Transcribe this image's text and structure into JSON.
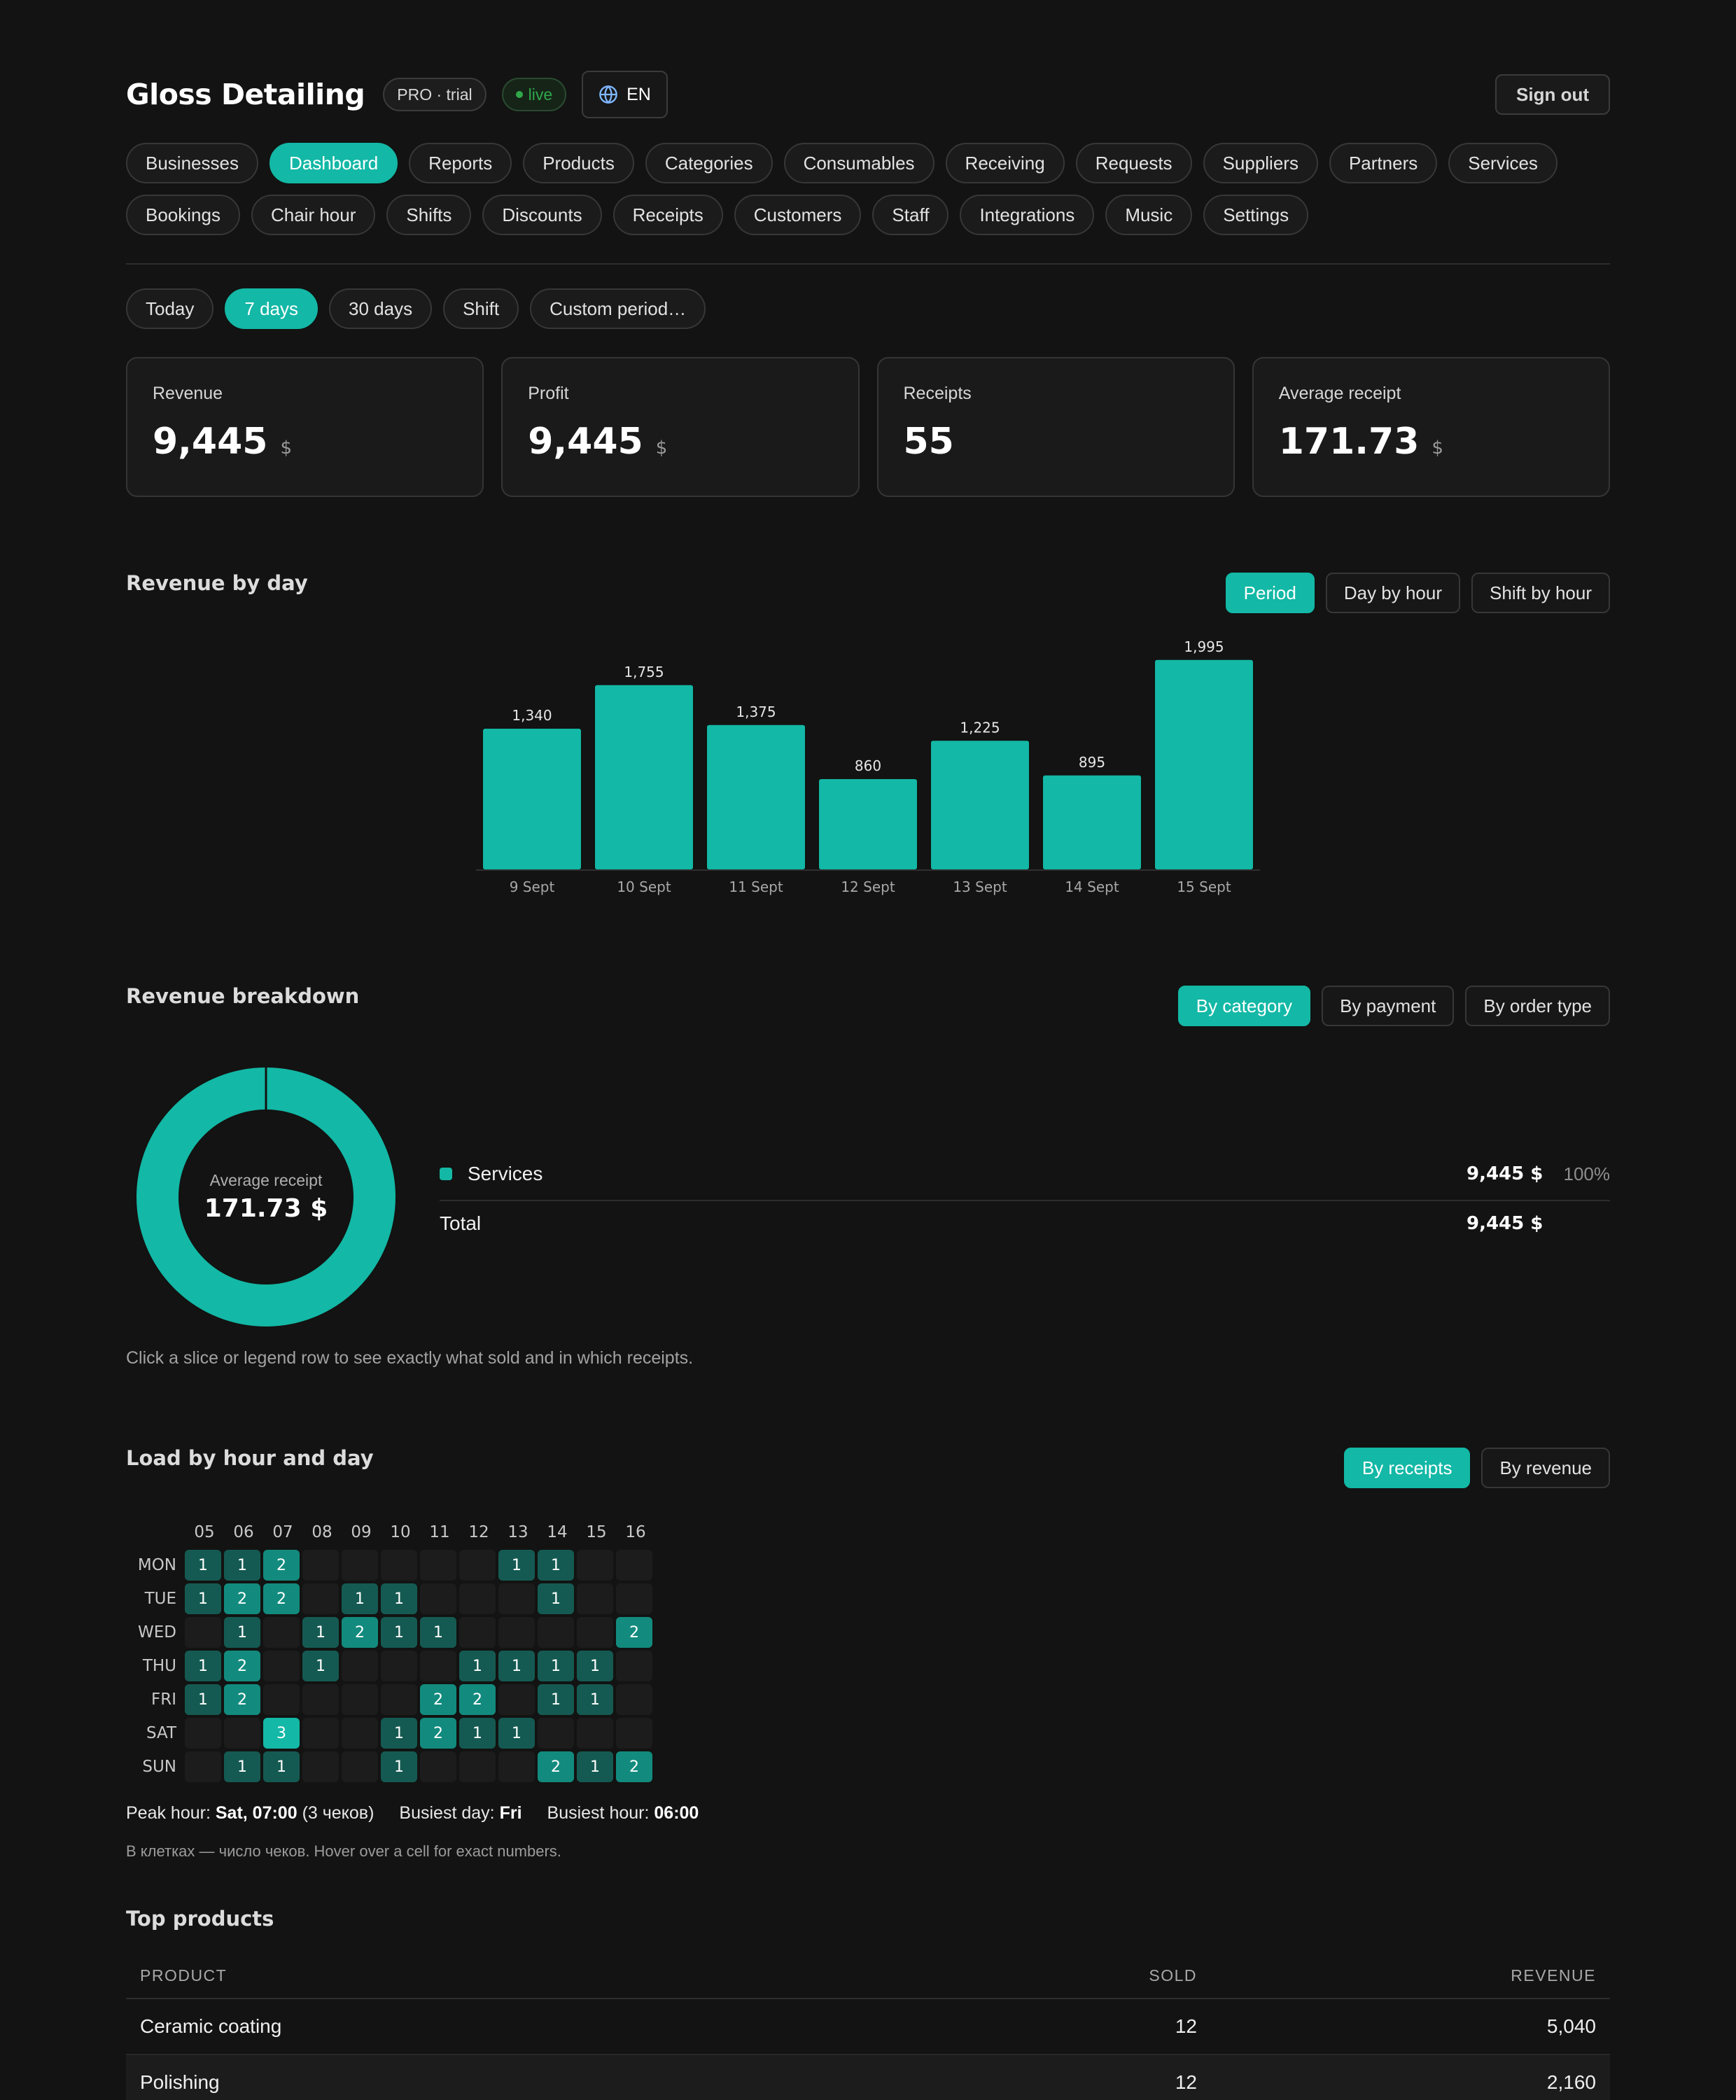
{
  "header": {
    "brand": "Gloss Detailing",
    "plan_badge": "PRO · trial",
    "live_badge": "live",
    "language": "EN",
    "sign_out": "Sign out"
  },
  "nav": {
    "row1": [
      "Businesses",
      "Dashboard",
      "Reports",
      "Products",
      "Categories",
      "Consumables",
      "Receiving",
      "Requests",
      "Suppliers",
      "Partners",
      "Services"
    ],
    "row2": [
      "Bookings",
      "Chair hour",
      "Shifts",
      "Discounts",
      "Receipts",
      "Customers",
      "Staff",
      "Integrations",
      "Music",
      "Settings"
    ],
    "active": "Dashboard"
  },
  "period": {
    "options": [
      "Today",
      "7 days",
      "30 days",
      "Shift",
      "Custom period…"
    ],
    "active": "7 days"
  },
  "kpis": [
    {
      "label": "Revenue",
      "value": "9,445",
      "unit": "$"
    },
    {
      "label": "Profit",
      "value": "9,445",
      "unit": "$"
    },
    {
      "label": "Receipts",
      "value": "55",
      "unit": ""
    },
    {
      "label": "Average receipt",
      "value": "171.73",
      "unit": "$"
    }
  ],
  "revenue_by_day": {
    "title": "Revenue by day",
    "modes": [
      "Period",
      "Day by hour",
      "Shift by hour"
    ],
    "active_mode": "Period"
  },
  "breakdown": {
    "title": "Revenue breakdown",
    "modes": [
      "By category",
      "By payment",
      "By order type"
    ],
    "active_mode": "By category",
    "center_label": "Average receipt",
    "center_value": "171.73 $",
    "legend": [
      {
        "name": "Services",
        "amount": "9,445 $",
        "percent": "100%"
      }
    ],
    "total_label": "Total",
    "total_amount": "9,445 $",
    "hint": "Click a slice or legend row to see exactly what sold and in which receipts."
  },
  "load": {
    "title": "Load by hour and day",
    "modes": [
      "By receipts",
      "By revenue"
    ],
    "active_mode": "By receipts",
    "hours": [
      "05",
      "06",
      "07",
      "08",
      "09",
      "10",
      "11",
      "12",
      "13",
      "14",
      "15",
      "16"
    ],
    "days": [
      "MON",
      "TUE",
      "WED",
      "THU",
      "FRI",
      "SAT",
      "SUN"
    ],
    "grid": [
      [
        1,
        1,
        2,
        0,
        0,
        0,
        0,
        0,
        1,
        1,
        0,
        0
      ],
      [
        1,
        2,
        2,
        0,
        1,
        1,
        0,
        0,
        0,
        1,
        0,
        0
      ],
      [
        0,
        1,
        0,
        1,
        2,
        1,
        1,
        0,
        0,
        0,
        0,
        2
      ],
      [
        1,
        2,
        0,
        1,
        0,
        0,
        0,
        1,
        1,
        1,
        1,
        0
      ],
      [
        1,
        2,
        0,
        0,
        0,
        0,
        2,
        2,
        0,
        1,
        1,
        0
      ],
      [
        0,
        0,
        3,
        0,
        0,
        1,
        2,
        1,
        1,
        0,
        0,
        0
      ],
      [
        0,
        1,
        1,
        0,
        0,
        1,
        0,
        0,
        0,
        2,
        1,
        2
      ]
    ],
    "peak_label": "Peak hour:",
    "peak_value": "Sat, 07:00",
    "peak_extra": "(3 чеков)",
    "busiest_day_label": "Busiest day:",
    "busiest_day_value": "Fri",
    "busiest_hour_label": "Busiest hour:",
    "busiest_hour_value": "06:00",
    "note": "В клетках — число чеков. Hover over a cell for exact numbers."
  },
  "top_products": {
    "title": "Top products",
    "columns": [
      "PRODUCT",
      "SOLD",
      "REVENUE"
    ],
    "rows": [
      {
        "product": "Ceramic coating",
        "sold": "12",
        "revenue": "5,040"
      },
      {
        "product": "Polishing",
        "sold": "12",
        "revenue": "2,160"
      }
    ]
  },
  "colors": {
    "accent": "#13b8a6",
    "background": "#121312"
  },
  "chart_data": {
    "type": "bar",
    "categories": [
      "9 Sept",
      "10 Sept",
      "11 Sept",
      "12 Sept",
      "13 Sept",
      "14 Sept",
      "15 Sept"
    ],
    "values": [
      1340,
      1755,
      1375,
      860,
      1225,
      895,
      1995
    ],
    "labels": [
      "1,340",
      "1,755",
      "1,375",
      "860",
      "1,225",
      "895",
      "1,995"
    ],
    "ylim": [
      0,
      2000
    ],
    "grid": false,
    "legend": "none"
  }
}
